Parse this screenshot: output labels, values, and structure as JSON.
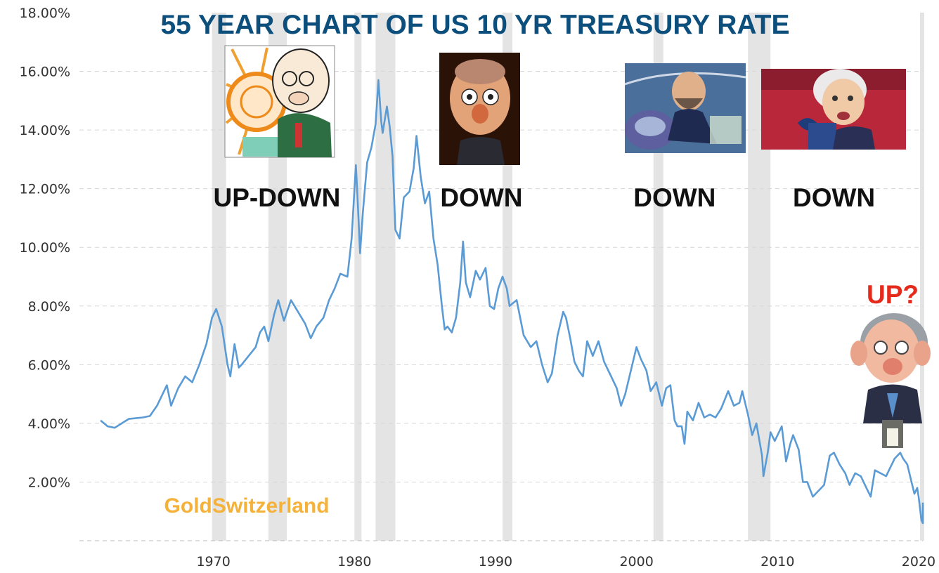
{
  "chart_data": {
    "type": "line",
    "title": "55 YEAR CHART OF US 10 YR TREASURY RATE",
    "xlabel": "",
    "ylabel": "",
    "xlim": [
      1960.5,
      2020.3
    ],
    "ylim": [
      0,
      18
    ],
    "yticks": [
      2,
      4,
      6,
      8,
      10,
      12,
      14,
      16,
      18
    ],
    "ytick_labels": [
      "2.00%",
      "4.00%",
      "6.00%",
      "8.00%",
      "10.00%",
      "12.00%",
      "14.00%",
      "16.00%",
      "18.00%"
    ],
    "xticks": [
      1970,
      1980,
      1990,
      2000,
      2010,
      2020
    ],
    "xtick_labels": [
      "1970",
      "1980",
      "1990",
      "2000",
      "2010",
      "2020"
    ],
    "grid": true,
    "recessions": [
      [
        1969.9,
        1970.9
      ],
      [
        1973.9,
        1975.2
      ],
      [
        1980.0,
        1980.5
      ],
      [
        1981.5,
        1982.9
      ],
      [
        1990.5,
        1991.2
      ],
      [
        2001.2,
        2001.9
      ],
      [
        2007.9,
        2009.5
      ],
      [
        2020.1,
        2020.4
      ]
    ],
    "series": [
      {
        "color": "#5b9bd5",
        "points": [
          [
            1962.0,
            4.1
          ],
          [
            1962.5,
            3.9
          ],
          [
            1963.0,
            3.85
          ],
          [
            1963.5,
            4.0
          ],
          [
            1964.0,
            4.15
          ],
          [
            1965.0,
            4.2
          ],
          [
            1965.5,
            4.25
          ],
          [
            1966.0,
            4.6
          ],
          [
            1966.7,
            5.3
          ],
          [
            1967.0,
            4.6
          ],
          [
            1967.5,
            5.2
          ],
          [
            1968.0,
            5.6
          ],
          [
            1968.5,
            5.4
          ],
          [
            1969.0,
            6.0
          ],
          [
            1969.5,
            6.7
          ],
          [
            1969.9,
            7.6
          ],
          [
            1970.2,
            7.9
          ],
          [
            1970.6,
            7.3
          ],
          [
            1971.0,
            6.0
          ],
          [
            1971.2,
            5.6
          ],
          [
            1971.5,
            6.7
          ],
          [
            1971.8,
            5.9
          ],
          [
            1972.0,
            6.0
          ],
          [
            1972.5,
            6.3
          ],
          [
            1973.0,
            6.6
          ],
          [
            1973.3,
            7.1
          ],
          [
            1973.6,
            7.3
          ],
          [
            1973.9,
            6.8
          ],
          [
            1974.3,
            7.7
          ],
          [
            1974.6,
            8.2
          ],
          [
            1975.0,
            7.5
          ],
          [
            1975.5,
            8.2
          ],
          [
            1976.0,
            7.8
          ],
          [
            1976.5,
            7.4
          ],
          [
            1976.9,
            6.9
          ],
          [
            1977.3,
            7.3
          ],
          [
            1977.8,
            7.6
          ],
          [
            1978.2,
            8.2
          ],
          [
            1978.6,
            8.6
          ],
          [
            1979.0,
            9.1
          ],
          [
            1979.5,
            9.0
          ],
          [
            1979.8,
            10.3
          ],
          [
            1980.1,
            12.8
          ],
          [
            1980.2,
            11.9
          ],
          [
            1980.4,
            9.8
          ],
          [
            1980.6,
            11.2
          ],
          [
            1980.9,
            12.9
          ],
          [
            1981.2,
            13.4
          ],
          [
            1981.5,
            14.2
          ],
          [
            1981.7,
            15.7
          ],
          [
            1981.9,
            14.3
          ],
          [
            1982.0,
            13.9
          ],
          [
            1982.3,
            14.8
          ],
          [
            1982.5,
            14.1
          ],
          [
            1982.7,
            13.1
          ],
          [
            1982.9,
            10.6
          ],
          [
            1983.2,
            10.3
          ],
          [
            1983.5,
            11.7
          ],
          [
            1983.9,
            11.9
          ],
          [
            1984.2,
            12.7
          ],
          [
            1984.4,
            13.8
          ],
          [
            1984.7,
            12.4
          ],
          [
            1985.0,
            11.5
          ],
          [
            1985.3,
            11.9
          ],
          [
            1985.6,
            10.3
          ],
          [
            1985.9,
            9.4
          ],
          [
            1986.2,
            8.0
          ],
          [
            1986.4,
            7.2
          ],
          [
            1986.6,
            7.3
          ],
          [
            1986.9,
            7.1
          ],
          [
            1987.2,
            7.6
          ],
          [
            1987.5,
            8.8
          ],
          [
            1987.7,
            10.2
          ],
          [
            1987.9,
            8.8
          ],
          [
            1988.2,
            8.3
          ],
          [
            1988.6,
            9.2
          ],
          [
            1988.9,
            8.9
          ],
          [
            1989.3,
            9.3
          ],
          [
            1989.6,
            8.0
          ],
          [
            1989.9,
            7.9
          ],
          [
            1990.2,
            8.6
          ],
          [
            1990.5,
            9.0
          ],
          [
            1990.8,
            8.6
          ],
          [
            1991.0,
            8.0
          ],
          [
            1991.5,
            8.2
          ],
          [
            1992.0,
            7.0
          ],
          [
            1992.5,
            6.6
          ],
          [
            1992.9,
            6.8
          ],
          [
            1993.3,
            6.0
          ],
          [
            1993.7,
            5.4
          ],
          [
            1994.0,
            5.7
          ],
          [
            1994.4,
            7.0
          ],
          [
            1994.8,
            7.8
          ],
          [
            1995.0,
            7.6
          ],
          [
            1995.3,
            6.9
          ],
          [
            1995.6,
            6.1
          ],
          [
            1995.9,
            5.8
          ],
          [
            1996.2,
            5.6
          ],
          [
            1996.5,
            6.8
          ],
          [
            1996.9,
            6.3
          ],
          [
            1997.3,
            6.8
          ],
          [
            1997.7,
            6.1
          ],
          [
            1998.2,
            5.6
          ],
          [
            1998.6,
            5.2
          ],
          [
            1998.9,
            4.6
          ],
          [
            1999.2,
            5.0
          ],
          [
            1999.6,
            5.8
          ],
          [
            2000.0,
            6.6
          ],
          [
            2000.3,
            6.2
          ],
          [
            2000.7,
            5.8
          ],
          [
            2001.0,
            5.1
          ],
          [
            2001.4,
            5.4
          ],
          [
            2001.8,
            4.6
          ],
          [
            2002.1,
            5.2
          ],
          [
            2002.4,
            5.3
          ],
          [
            2002.7,
            4.1
          ],
          [
            2002.9,
            3.9
          ],
          [
            2003.2,
            3.9
          ],
          [
            2003.4,
            3.3
          ],
          [
            2003.6,
            4.4
          ],
          [
            2004.0,
            4.1
          ],
          [
            2004.4,
            4.7
          ],
          [
            2004.8,
            4.2
          ],
          [
            2005.2,
            4.3
          ],
          [
            2005.6,
            4.2
          ],
          [
            2006.0,
            4.5
          ],
          [
            2006.5,
            5.1
          ],
          [
            2006.9,
            4.6
          ],
          [
            2007.3,
            4.7
          ],
          [
            2007.5,
            5.1
          ],
          [
            2007.9,
            4.3
          ],
          [
            2008.2,
            3.6
          ],
          [
            2008.5,
            4.0
          ],
          [
            2008.9,
            2.9
          ],
          [
            2009.0,
            2.2
          ],
          [
            2009.3,
            3.0
          ],
          [
            2009.5,
            3.7
          ],
          [
            2009.8,
            3.4
          ],
          [
            2010.3,
            3.9
          ],
          [
            2010.6,
            2.7
          ],
          [
            2010.9,
            3.3
          ],
          [
            2011.1,
            3.6
          ],
          [
            2011.5,
            3.1
          ],
          [
            2011.8,
            2.0
          ],
          [
            2012.1,
            2.0
          ],
          [
            2012.5,
            1.5
          ],
          [
            2012.9,
            1.7
          ],
          [
            2013.3,
            1.9
          ],
          [
            2013.7,
            2.9
          ],
          [
            2014.0,
            3.0
          ],
          [
            2014.4,
            2.6
          ],
          [
            2014.8,
            2.3
          ],
          [
            2015.1,
            1.9
          ],
          [
            2015.5,
            2.3
          ],
          [
            2015.9,
            2.2
          ],
          [
            2016.3,
            1.8
          ],
          [
            2016.6,
            1.5
          ],
          [
            2016.9,
            2.4
          ],
          [
            2017.3,
            2.3
          ],
          [
            2017.7,
            2.2
          ],
          [
            2018.0,
            2.5
          ],
          [
            2018.3,
            2.8
          ],
          [
            2018.7,
            3.0
          ],
          [
            2018.9,
            2.8
          ],
          [
            2019.2,
            2.6
          ],
          [
            2019.5,
            2.0
          ],
          [
            2019.7,
            1.6
          ],
          [
            2019.9,
            1.8
          ],
          [
            2020.0,
            1.5
          ],
          [
            2020.2,
            0.7
          ],
          [
            2020.4,
            0.6
          ],
          [
            2020.7,
            0.7
          ],
          [
            2020.9,
            0.9
          ],
          [
            2021.1,
            1.3
          ]
        ]
      }
    ],
    "annotations": [
      {
        "text": "UP-DOWN",
        "x": 1974.5,
        "y": 11.7
      },
      {
        "text": "DOWN",
        "x": 1989.0,
        "y": 11.7
      },
      {
        "text": "DOWN",
        "x": 2002.7,
        "y": 11.7
      },
      {
        "text": "DOWN",
        "x": 2014.0,
        "y": 11.7
      }
    ],
    "highlight_annotation": {
      "text": "UP?",
      "x": 2018.3,
      "y": 8.4
    },
    "brand": {
      "text": "GoldSwitzerland",
      "x": 1968.5,
      "y": 0.6
    }
  },
  "portraits": [
    {
      "name": "portrait-volcker-icon"
    },
    {
      "name": "portrait-greenspan-icon"
    },
    {
      "name": "portrait-bernanke-icon"
    },
    {
      "name": "portrait-yellen-icon"
    },
    {
      "name": "portrait-powell-icon"
    }
  ]
}
